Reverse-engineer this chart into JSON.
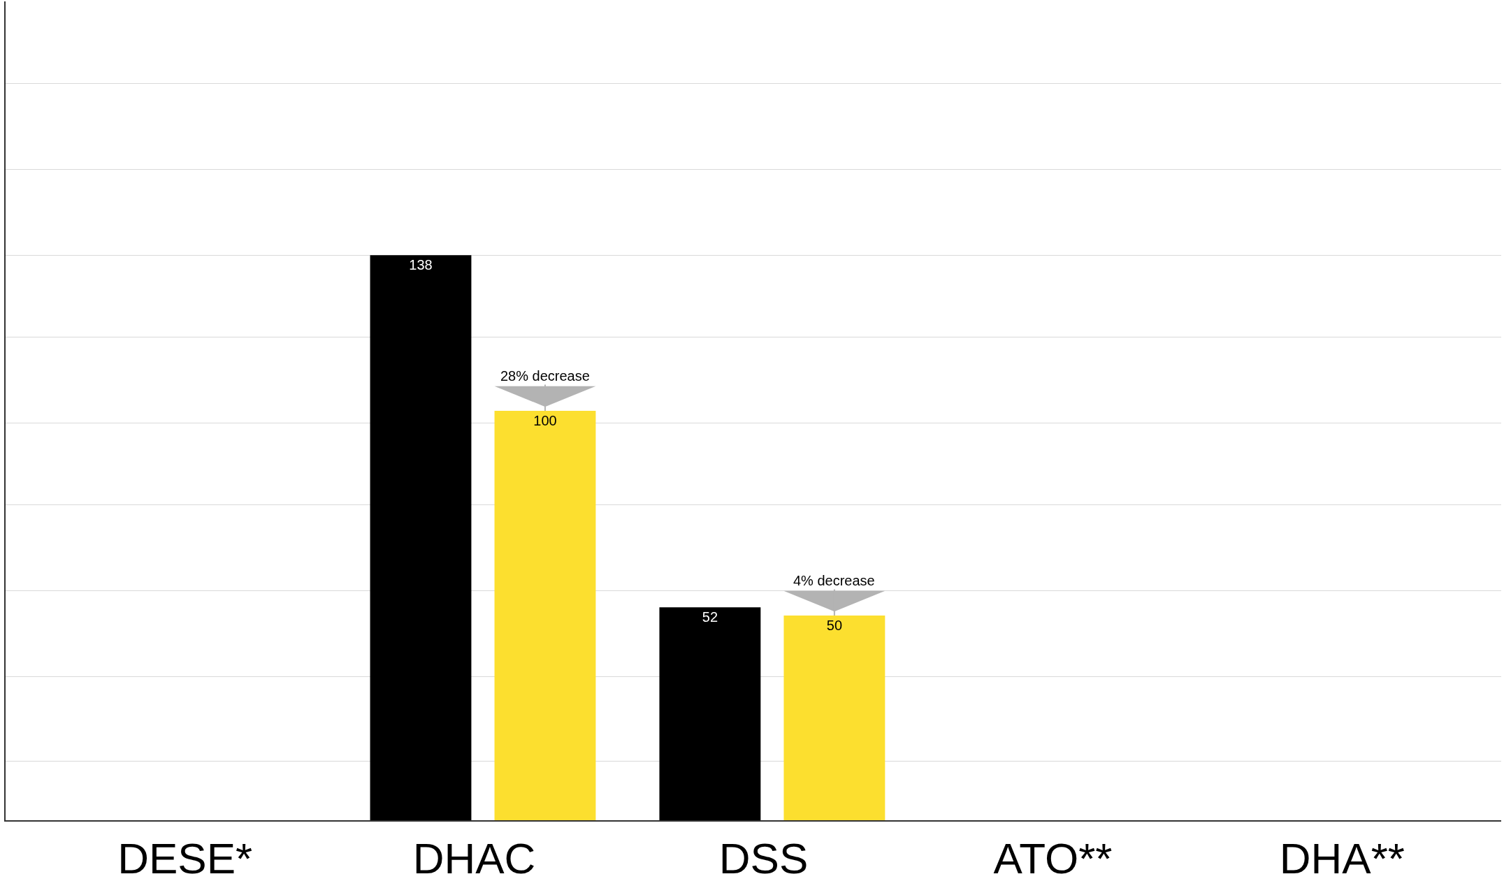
{
  "chart_data": {
    "type": "bar",
    "categories": [
      "DESE*",
      "DHAC",
      "DSS",
      "ATO**",
      "DHA**"
    ],
    "series": [
      {
        "color": "#000000",
        "values": [
          null,
          138,
          52,
          null,
          null
        ]
      },
      {
        "color": "#fcdf2f",
        "values": [
          null,
          100,
          50,
          null,
          null
        ]
      }
    ],
    "data_labels": true,
    "ylim": [
      0,
      200
    ],
    "yticks": [
      {
        "value": 14.5,
        "label": null
      },
      {
        "value": 35,
        "label": null
      },
      {
        "value": 56,
        "label": null
      },
      {
        "value": 77,
        "label": null
      },
      {
        "value": 97,
        "label": null
      },
      {
        "value": 118,
        "label": null
      },
      {
        "value": 138,
        "label": null
      },
      {
        "value": 159,
        "label": null
      },
      {
        "value": 180,
        "label": null
      },
      {
        "value": 200,
        "label": null
      }
    ],
    "tick_labels": "x",
    "grid": "y",
    "annotations": [
      {
        "text": "28% decrease",
        "x": "DHAC",
        "y": 100
      },
      {
        "text": "4% decrease",
        "x": "DSS",
        "y": 50
      }
    ]
  }
}
